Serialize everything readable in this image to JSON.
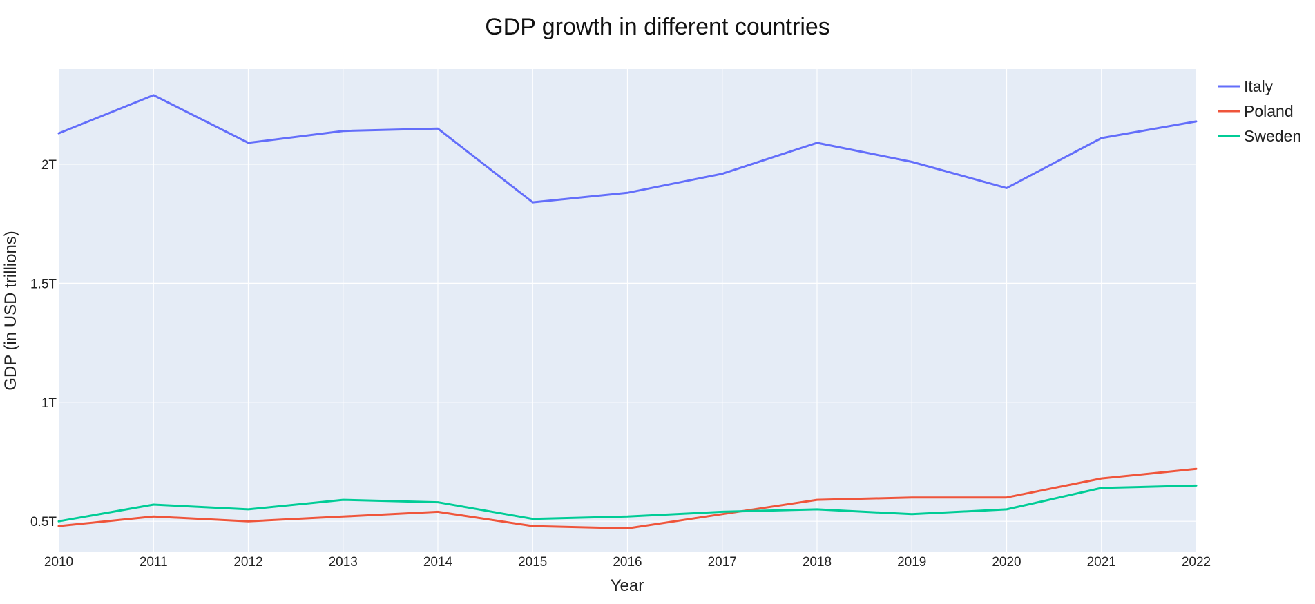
{
  "chart_data": {
    "type": "line",
    "title": "GDP growth in different countries",
    "xlabel": "Year",
    "ylabel": "GDP (in USD trillions)",
    "x": [
      2010,
      2011,
      2012,
      2013,
      2014,
      2015,
      2016,
      2017,
      2018,
      2019,
      2020,
      2021,
      2022
    ],
    "x_ticks": [
      "2010",
      "2011",
      "2012",
      "2013",
      "2014",
      "2015",
      "2016",
      "2017",
      "2018",
      "2019",
      "2020",
      "2021",
      "2022"
    ],
    "xlim": [
      2010,
      2022
    ],
    "ylim": [
      0.37,
      2.4
    ],
    "y_ticks": [
      {
        "value": 0.5,
        "label": "0.5T"
      },
      {
        "value": 1.0,
        "label": "1T"
      },
      {
        "value": 1.5,
        "label": "1.5T"
      },
      {
        "value": 2.0,
        "label": "2T"
      }
    ],
    "grid": true,
    "legend_position": "top-right",
    "plot_background": "#e5ecf6",
    "series": [
      {
        "name": "Italy",
        "color": "#636efa",
        "values": [
          2.13,
          2.29,
          2.09,
          2.14,
          2.15,
          1.84,
          1.88,
          1.96,
          2.09,
          2.01,
          1.9,
          2.11,
          2.18
        ]
      },
      {
        "name": "Poland",
        "color": "#ef553b",
        "values": [
          0.48,
          0.52,
          0.5,
          0.52,
          0.54,
          0.48,
          0.47,
          0.53,
          0.59,
          0.6,
          0.6,
          0.68,
          0.72
        ]
      },
      {
        "name": "Sweden",
        "color": "#00cc96",
        "values": [
          0.5,
          0.57,
          0.55,
          0.59,
          0.58,
          0.51,
          0.52,
          0.54,
          0.55,
          0.53,
          0.55,
          0.64,
          0.65
        ]
      }
    ]
  }
}
